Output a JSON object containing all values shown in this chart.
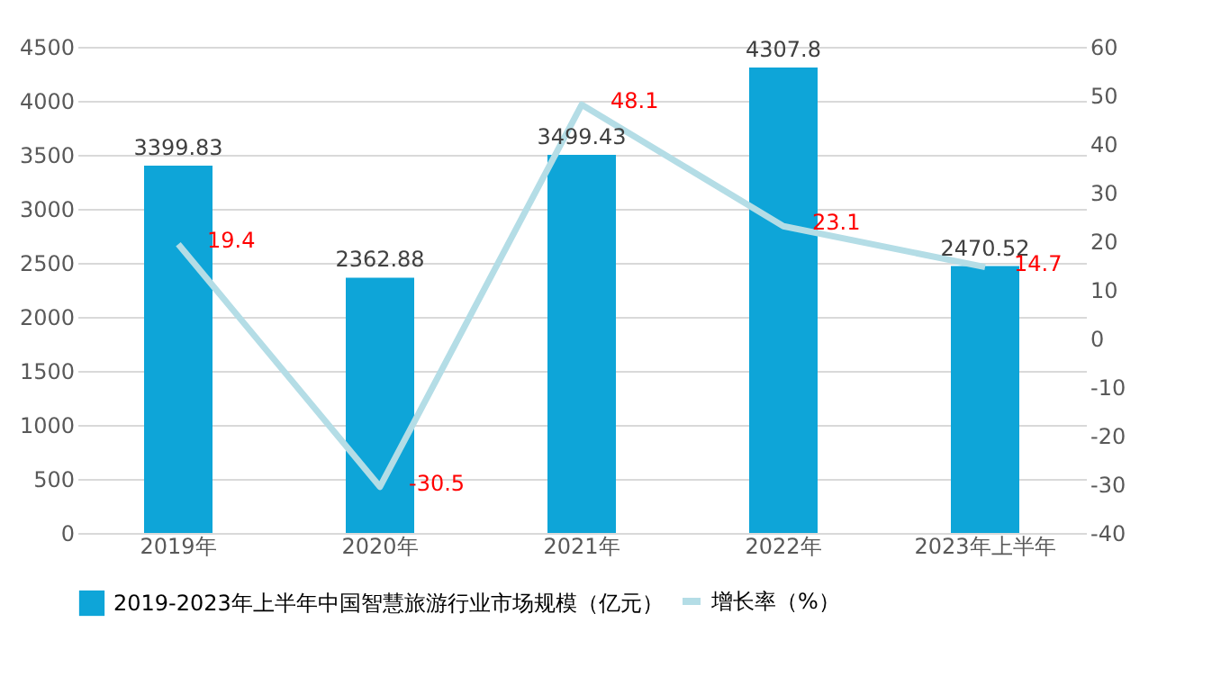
{
  "chart_data": {
    "type": "bar",
    "categories": [
      "2019年",
      "2020年",
      "2021年",
      "2022年",
      "2023年上半年"
    ],
    "series": [
      {
        "name": "2019-2023年上半年中国智慧旅游行业市场规模（亿元）",
        "color": "#0ea5d8",
        "values": [
          3399.83,
          2362.88,
          3499.43,
          4307.8,
          2470.52
        ]
      },
      {
        "name": "增长率（%）",
        "type": "line",
        "axis": "y2",
        "color": "#b4dde6",
        "values": [
          19.4,
          -30.5,
          48.1,
          23.1,
          14.7
        ]
      }
    ],
    "ylim": [
      0,
      4500
    ],
    "yticks": [
      0,
      500,
      1000,
      1500,
      2000,
      2500,
      3000,
      3500,
      4000,
      4500
    ],
    "y2lim": [
      -40,
      60
    ],
    "y2ticks": [
      -40,
      -30,
      -20,
      -10,
      0,
      10,
      20,
      30,
      40,
      50,
      60
    ],
    "data_labels": true,
    "grid": "y",
    "legend": "bottom",
    "marker": "none",
    "line_style": "solid"
  }
}
